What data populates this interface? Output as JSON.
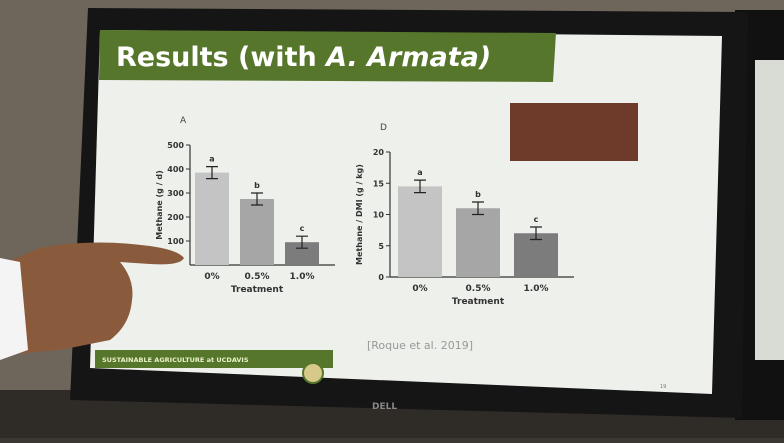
{
  "slide": {
    "title_parts": [
      "Results (with",
      "A. Armata)"
    ],
    "citation": "[Roque et al. 2019]",
    "footer": "SUSTAINABLE AGRICULTURE at UCDAVIS",
    "page_number": "19",
    "brand": "DELL"
  },
  "chart_data": [
    {
      "type": "bar",
      "title": "A",
      "y_label": "Methane (g / d)",
      "x_label": "Treatment",
      "categories": [
        "0%",
        "0.5%",
        "1.0%"
      ],
      "values": [
        385,
        275,
        95
      ],
      "errors": [
        25,
        25,
        25
      ],
      "annotations": [
        "a",
        "b",
        "c"
      ],
      "colors": [
        "#c4c4c4",
        "#a6a6a6",
        "#7c7c7c"
      ],
      "ylim": [
        0,
        500
      ],
      "yticks": [
        100,
        200,
        300,
        400,
        500
      ]
    },
    {
      "type": "bar",
      "title": "D",
      "y_label": "Methane / DMI (g / kg)",
      "x_label": "Treatment",
      "categories": [
        "0%",
        "0.5%",
        "1.0%"
      ],
      "values": [
        14.5,
        11,
        7
      ],
      "errors": [
        1,
        1,
        1
      ],
      "annotations": [
        "a",
        "b",
        "c"
      ],
      "colors": [
        "#c4c4c4",
        "#a6a6a6",
        "#7c7c7c"
      ],
      "ylim": [
        0,
        20
      ],
      "yticks": [
        0,
        5,
        10,
        15,
        20
      ]
    }
  ]
}
